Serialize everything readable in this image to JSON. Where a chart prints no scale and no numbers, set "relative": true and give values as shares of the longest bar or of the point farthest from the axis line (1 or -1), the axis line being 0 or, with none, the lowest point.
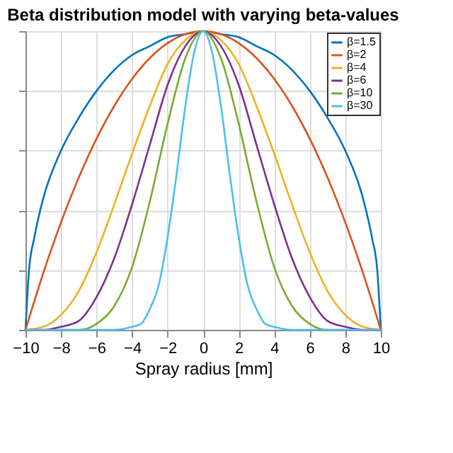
{
  "chart_data": {
    "type": "line",
    "title": "Beta distribution model with varying beta-values",
    "xlabel": "Spray radius [mm]",
    "relative": true,
    "xlim": [
      -10,
      10
    ],
    "xticks": [
      -10,
      -8,
      -6,
      -4,
      -2,
      0,
      2,
      4,
      6,
      8,
      10
    ],
    "tick_labels": "x",
    "grid": true,
    "legend": "top right",
    "marker": "none",
    "line_style": "solid",
    "x": [
      -10,
      -9,
      -8,
      -7,
      -6,
      -5,
      -4,
      -3,
      -2,
      -1,
      0,
      1,
      2,
      3,
      4,
      5,
      6,
      7,
      8,
      9,
      10
    ],
    "series": [
      {
        "name": "β=1.5",
        "color": "#0072bd",
        "x": [
          -10,
          -9.8,
          -9.5,
          -9,
          -8,
          -7,
          -6,
          -5,
          -4,
          -3,
          -2,
          -1,
          0,
          1,
          2,
          3,
          4,
          5,
          6,
          7,
          8,
          9,
          9.5,
          9.8,
          10
        ],
        "values": [
          0,
          0.2,
          0.31,
          0.44,
          0.6,
          0.71,
          0.8,
          0.87,
          0.92,
          0.95,
          0.98,
          0.99,
          1,
          0.99,
          0.98,
          0.95,
          0.92,
          0.87,
          0.8,
          0.71,
          0.6,
          0.44,
          0.31,
          0.2,
          0
        ]
      },
      {
        "name": "β=2",
        "color": "#d95319",
        "values": [
          0,
          0.19,
          0.36,
          0.51,
          0.64,
          0.75,
          0.84,
          0.91,
          0.96,
          0.99,
          1,
          0.99,
          0.96,
          0.91,
          0.84,
          0.75,
          0.64,
          0.51,
          0.36,
          0.19,
          0
        ]
      },
      {
        "name": "β=4",
        "color": "#edb120",
        "values": [
          0,
          0.01,
          0.05,
          0.13,
          0.26,
          0.42,
          0.59,
          0.75,
          0.89,
          0.97,
          1,
          0.97,
          0.89,
          0.75,
          0.59,
          0.42,
          0.26,
          0.13,
          0.05,
          0.01,
          0
        ]
      },
      {
        "name": "β=6",
        "color": "#7e2f8e",
        "values": [
          0,
          0,
          0.01,
          0.03,
          0.11,
          0.24,
          0.42,
          0.62,
          0.82,
          0.95,
          1,
          0.95,
          0.82,
          0.62,
          0.42,
          0.24,
          0.11,
          0.03,
          0.01,
          0,
          0
        ]
      },
      {
        "name": "β=10",
        "color": "#77ac30",
        "values": [
          null,
          null,
          0,
          0,
          0.02,
          0.08,
          0.21,
          0.43,
          0.69,
          0.91,
          1,
          0.91,
          0.69,
          0.43,
          0.21,
          0.08,
          0.02,
          0,
          0,
          null,
          null
        ]
      },
      {
        "name": "β=30",
        "color": "#4dbeee",
        "x": [
          -10,
          -5,
          -4,
          -3.5,
          -3,
          -2.5,
          -2,
          -1.5,
          -1,
          -0.5,
          0,
          0.5,
          1,
          1.5,
          2,
          2.5,
          3,
          3.5,
          4,
          5,
          10
        ],
        "values": [
          0,
          0,
          0.01,
          0.02,
          0.07,
          0.15,
          0.31,
          0.52,
          0.75,
          0.93,
          1,
          0.93,
          0.75,
          0.52,
          0.31,
          0.15,
          0.07,
          0.02,
          0.01,
          0,
          0
        ]
      }
    ]
  }
}
